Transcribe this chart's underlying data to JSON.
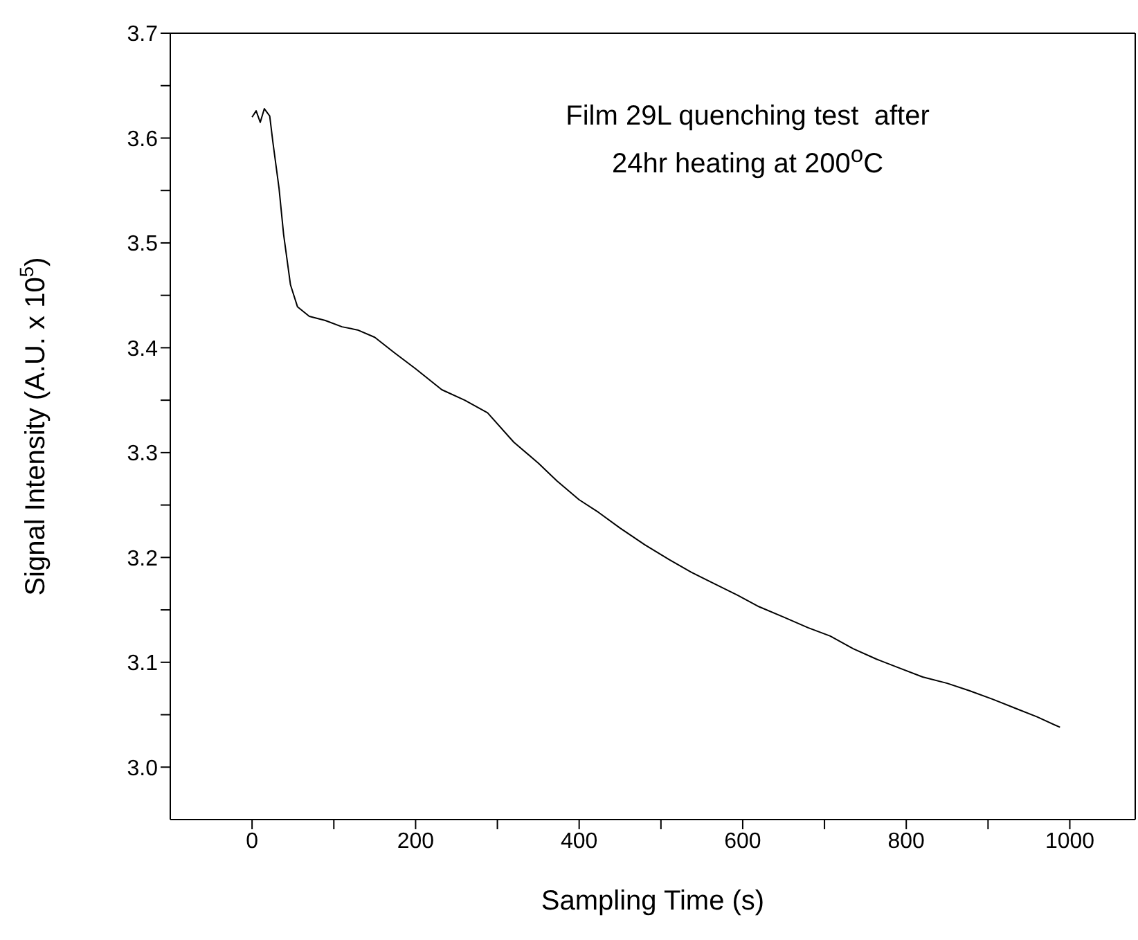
{
  "chart_data": {
    "type": "line",
    "xlabel": "Sampling Time (s)",
    "ylabel": "Signal Intensity (A.U. x 10$^{5}$)",
    "annotations": [
      "Film 29L quenching test  after",
      "24hr heating at 200$^{o}$C"
    ],
    "xlim": [
      -100,
      1080
    ],
    "ylim": [
      2.95,
      3.7
    ],
    "xticks": [
      0,
      {
        "value": 100,
        "label": null
      },
      200,
      {
        "value": 300,
        "label": null
      },
      400,
      {
        "value": 500,
        "label": null
      },
      600,
      {
        "value": 700,
        "label": null
      },
      800,
      {
        "value": 900,
        "label": null
      },
      1000
    ],
    "yticks": [
      {
        "value": 3.0,
        "label": "3.0"
      },
      {
        "value": 3.05,
        "label": null
      },
      3.1,
      {
        "value": 3.15,
        "label": null
      },
      3.2,
      {
        "value": 3.25,
        "label": null
      },
      3.3,
      {
        "value": 3.35,
        "label": null
      },
      3.4,
      {
        "value": 3.45,
        "label": null
      },
      3.5,
      {
        "value": 3.55,
        "label": null
      },
      3.6,
      {
        "value": 3.65,
        "label": null
      },
      3.7
    ],
    "marker": "none",
    "grid": false,
    "legend": false,
    "series": [
      {
        "color": "#000000",
        "x": [
          0,
          5,
          10,
          15,
          21.6,
          25.5,
          33,
          38.6,
          47,
          55.6,
          70,
          89.6,
          110,
          129,
          150,
          174.5,
          200,
          232,
          260,
          288,
          320,
          350,
          372.8,
          400,
          423.7,
          450,
          480.4,
          510,
          537,
          565,
          593.7,
          620,
          650.3,
          680,
          707,
          735,
          763.6,
          790,
          820,
          850,
          877,
          905,
          934,
          960,
          988
        ],
        "values": [
          3.62,
          3.626,
          3.615,
          3.628,
          3.621,
          3.596,
          3.552,
          3.508,
          3.46,
          3.439,
          3.43,
          3.426,
          3.42,
          3.417,
          3.41,
          3.395,
          3.38,
          3.36,
          3.35,
          3.338,
          3.31,
          3.29,
          3.273,
          3.255,
          3.243,
          3.228,
          3.212,
          3.198,
          3.186,
          3.175,
          3.164,
          3.153,
          3.143,
          3.133,
          3.125,
          3.113,
          3.103,
          3.095,
          3.086,
          3.08,
          3.073,
          3.065,
          3.056,
          3.048,
          3.038
        ]
      }
    ]
  }
}
